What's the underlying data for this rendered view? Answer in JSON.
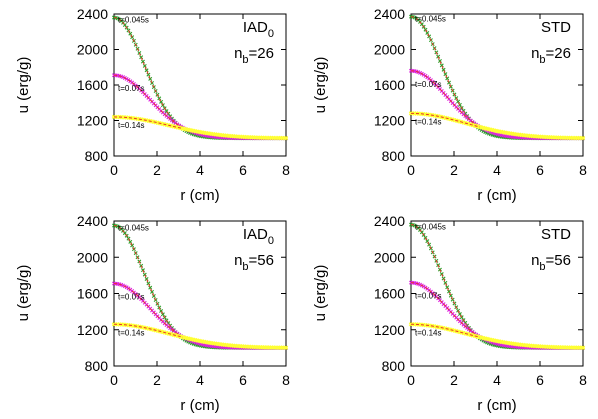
{
  "figure": {
    "colors": {
      "t1": "#2aa02a",
      "t2": "#dd22dd",
      "t3": "#ffff33",
      "reference": "#e8352a",
      "axis": "#000000"
    }
  },
  "chart_data": [
    {
      "type": "scatter",
      "title": "IAD0",
      "title_main": "IAD",
      "title_sub": "0",
      "nb_label": "n",
      "nb_sub": "b",
      "nb_value": "=26",
      "xlabel": "r (cm)",
      "ylabel": "u (erg/g)",
      "xlim": [
        0,
        8
      ],
      "ylim": [
        800,
        2400
      ],
      "xticks": [
        "0",
        "2",
        "4",
        "6",
        "8"
      ],
      "yticks": [
        "800",
        "1200",
        "1600",
        "2000",
        "2400"
      ],
      "grid": false,
      "series": [
        {
          "name": "t=0.045s",
          "u0": 1360,
          "w": 2.0
        },
        {
          "name": "t=0.07s",
          "u0": 710,
          "w": 2.4
        },
        {
          "name": "t=0.14s",
          "u0": 240,
          "w": 3.6
        }
      ]
    },
    {
      "type": "scatter",
      "title": "STD",
      "title_main": "STD",
      "title_sub": "",
      "nb_label": "n",
      "nb_sub": "b",
      "nb_value": "=26",
      "xlabel": "r (cm)",
      "ylabel": "u (erg/g)",
      "xlim": [
        0,
        8
      ],
      "ylim": [
        800,
        2400
      ],
      "xticks": [
        "0",
        "2",
        "4",
        "6",
        "8"
      ],
      "yticks": [
        "800",
        "1200",
        "1600",
        "2000",
        "2400"
      ],
      "grid": false,
      "series": [
        {
          "name": "t=0.045s",
          "u0": 1370,
          "w": 2.0
        },
        {
          "name": "t=0.07s",
          "u0": 760,
          "w": 2.4
        },
        {
          "name": "t=0.14s",
          "u0": 280,
          "w": 3.6
        }
      ]
    },
    {
      "type": "scatter",
      "title": "IAD0",
      "title_main": "IAD",
      "title_sub": "0",
      "nb_label": "n",
      "nb_sub": "b",
      "nb_value": "=56",
      "xlabel": "r (cm)",
      "ylabel": "u (erg/g)",
      "xlim": [
        0,
        8
      ],
      "ylim": [
        800,
        2400
      ],
      "xticks": [
        "0",
        "2",
        "4",
        "6",
        "8"
      ],
      "yticks": [
        "800",
        "1200",
        "1600",
        "2000",
        "2400"
      ],
      "grid": false,
      "series": [
        {
          "name": "t=0.045s",
          "u0": 1350,
          "w": 2.0
        },
        {
          "name": "t=0.07s",
          "u0": 710,
          "w": 2.4
        },
        {
          "name": "t=0.14s",
          "u0": 260,
          "w": 3.6
        }
      ]
    },
    {
      "type": "scatter",
      "title": "STD",
      "title_main": "STD",
      "title_sub": "",
      "nb_label": "n",
      "nb_sub": "b",
      "nb_value": "=56",
      "xlabel": "r (cm)",
      "ylabel": "u (erg/g)",
      "xlim": [
        0,
        8
      ],
      "ylim": [
        800,
        2400
      ],
      "xticks": [
        "0",
        "2",
        "4",
        "6",
        "8"
      ],
      "yticks": [
        "800",
        "1200",
        "1600",
        "2000",
        "2400"
      ],
      "grid": false,
      "series": [
        {
          "name": "t=0.045s",
          "u0": 1360,
          "w": 2.0
        },
        {
          "name": "t=0.07s",
          "u0": 720,
          "w": 2.4
        },
        {
          "name": "t=0.14s",
          "u0": 260,
          "w": 3.6
        }
      ]
    }
  ]
}
